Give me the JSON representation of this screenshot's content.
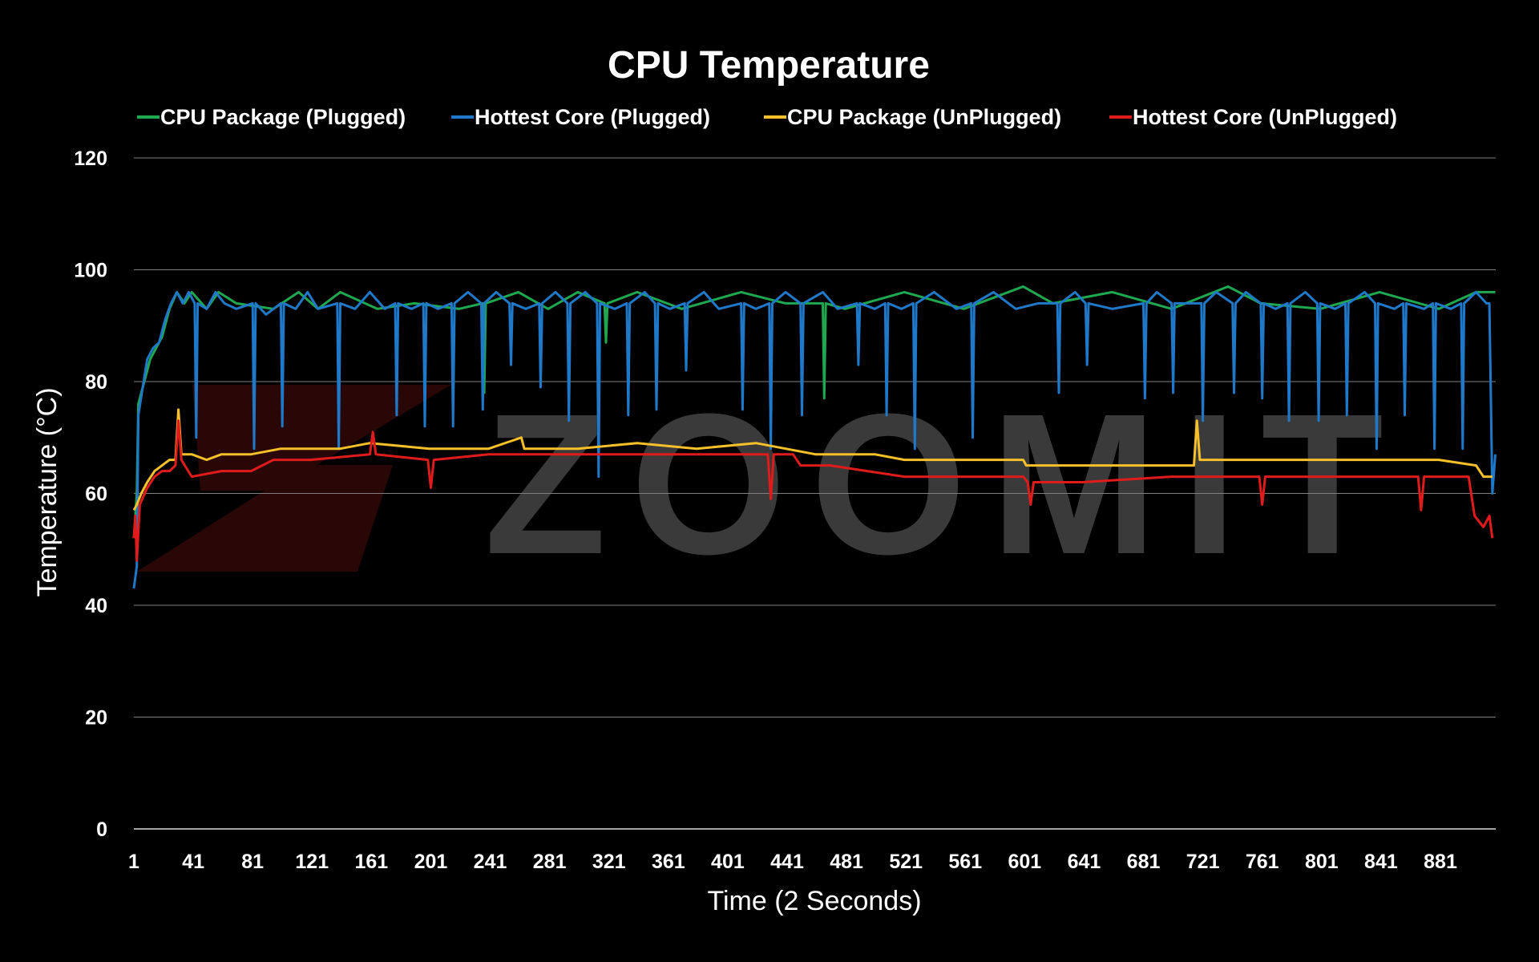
{
  "watermark": "ZOOMIT",
  "chart_data": {
    "type": "line",
    "title": "CPU Temperature",
    "xlabel": "Time (2 Seconds)",
    "ylabel": "Temperature (°C)",
    "ylim": [
      0,
      120
    ],
    "xlim": [
      1,
      918
    ],
    "yticks": [
      0,
      20,
      40,
      60,
      80,
      100,
      120
    ],
    "xticks": [
      1,
      41,
      81,
      121,
      161,
      201,
      241,
      281,
      321,
      361,
      401,
      441,
      481,
      521,
      561,
      601,
      641,
      681,
      721,
      761,
      801,
      841,
      881
    ],
    "grid": true,
    "legend_position": "top",
    "series": [
      {
        "name": "CPU Package (Plugged)",
        "color": "#1fa84f",
        "points": [
          [
            1,
            52
          ],
          [
            3,
            60
          ],
          [
            4,
            76
          ],
          [
            8,
            80
          ],
          [
            12,
            84
          ],
          [
            16,
            86
          ],
          [
            20,
            88
          ],
          [
            25,
            93
          ],
          [
            30,
            96
          ],
          [
            35,
            94
          ],
          [
            40,
            96
          ],
          [
            50,
            93
          ],
          [
            58,
            96
          ],
          [
            70,
            94
          ],
          [
            95,
            93
          ],
          [
            112,
            96
          ],
          [
            125,
            93
          ],
          [
            140,
            96
          ],
          [
            165,
            93
          ],
          [
            190,
            94
          ],
          [
            220,
            93
          ],
          [
            236,
            94
          ],
          [
            237,
            78
          ],
          [
            238,
            94
          ],
          [
            260,
            96
          ],
          [
            280,
            93
          ],
          [
            300,
            96
          ],
          [
            318,
            94
          ],
          [
            319,
            87
          ],
          [
            320,
            94
          ],
          [
            340,
            96
          ],
          [
            370,
            93
          ],
          [
            410,
            96
          ],
          [
            440,
            94
          ],
          [
            465,
            94
          ],
          [
            466,
            77
          ],
          [
            467,
            94
          ],
          [
            480,
            93
          ],
          [
            520,
            96
          ],
          [
            560,
            93
          ],
          [
            600,
            97
          ],
          [
            620,
            94
          ],
          [
            660,
            96
          ],
          [
            700,
            93
          ],
          [
            738,
            97
          ],
          [
            760,
            94
          ],
          [
            800,
            93
          ],
          [
            840,
            96
          ],
          [
            880,
            93
          ],
          [
            905,
            96
          ],
          [
            915,
            96
          ],
          [
            918,
            96
          ]
        ]
      },
      {
        "name": "Hottest Core (Plugged)",
        "color": "#1f78c8",
        "points": [
          [
            1,
            43
          ],
          [
            3,
            47
          ],
          [
            4,
            74
          ],
          [
            7,
            79
          ],
          [
            10,
            84
          ],
          [
            14,
            86
          ],
          [
            18,
            87
          ],
          [
            22,
            91
          ],
          [
            26,
            94
          ],
          [
            30,
            96
          ],
          [
            34,
            94
          ],
          [
            38,
            96
          ],
          [
            42,
            94
          ],
          [
            43,
            70
          ],
          [
            44,
            94
          ],
          [
            50,
            93
          ],
          [
            56,
            96
          ],
          [
            62,
            94
          ],
          [
            70,
            93
          ],
          [
            81,
            94
          ],
          [
            82,
            68
          ],
          [
            83,
            94
          ],
          [
            90,
            92
          ],
          [
            100,
            94
          ],
          [
            101,
            72
          ],
          [
            102,
            94
          ],
          [
            110,
            93
          ],
          [
            118,
            96
          ],
          [
            125,
            93
          ],
          [
            138,
            94
          ],
          [
            139,
            68
          ],
          [
            140,
            94
          ],
          [
            150,
            93
          ],
          [
            160,
            96
          ],
          [
            170,
            93
          ],
          [
            177,
            94
          ],
          [
            178,
            74
          ],
          [
            179,
            94
          ],
          [
            188,
            93
          ],
          [
            196,
            94
          ],
          [
            197,
            72
          ],
          [
            198,
            94
          ],
          [
            206,
            93
          ],
          [
            215,
            94
          ],
          [
            216,
            72
          ],
          [
            217,
            94
          ],
          [
            226,
            96
          ],
          [
            235,
            94
          ],
          [
            236,
            75
          ],
          [
            237,
            94
          ],
          [
            245,
            96
          ],
          [
            254,
            94
          ],
          [
            255,
            83
          ],
          [
            256,
            94
          ],
          [
            265,
            93
          ],
          [
            274,
            94
          ],
          [
            275,
            79
          ],
          [
            276,
            94
          ],
          [
            285,
            96
          ],
          [
            293,
            94
          ],
          [
            294,
            73
          ],
          [
            295,
            94
          ],
          [
            305,
            96
          ],
          [
            313,
            94
          ],
          [
            314,
            63
          ],
          [
            315,
            94
          ],
          [
            325,
            93
          ],
          [
            333,
            94
          ],
          [
            334,
            74
          ],
          [
            335,
            94
          ],
          [
            345,
            96
          ],
          [
            352,
            94
          ],
          [
            353,
            75
          ],
          [
            354,
            94
          ],
          [
            362,
            93
          ],
          [
            372,
            94
          ],
          [
            373,
            82
          ],
          [
            374,
            94
          ],
          [
            385,
            96
          ],
          [
            395,
            93
          ],
          [
            410,
            94
          ],
          [
            411,
            75
          ],
          [
            412,
            94
          ],
          [
            420,
            93
          ],
          [
            429,
            94
          ],
          [
            430,
            68
          ],
          [
            431,
            94
          ],
          [
            440,
            96
          ],
          [
            450,
            94
          ],
          [
            451,
            74
          ],
          [
            452,
            94
          ],
          [
            465,
            96
          ],
          [
            475,
            93
          ],
          [
            488,
            94
          ],
          [
            489,
            83
          ],
          [
            490,
            94
          ],
          [
            500,
            93
          ],
          [
            507,
            94
          ],
          [
            508,
            74
          ],
          [
            509,
            94
          ],
          [
            518,
            93
          ],
          [
            526,
            94
          ],
          [
            527,
            68
          ],
          [
            528,
            94
          ],
          [
            540,
            96
          ],
          [
            555,
            93
          ],
          [
            565,
            94
          ],
          [
            566,
            70
          ],
          [
            567,
            94
          ],
          [
            580,
            96
          ],
          [
            595,
            93
          ],
          [
            610,
            94
          ],
          [
            623,
            94
          ],
          [
            624,
            78
          ],
          [
            625,
            94
          ],
          [
            635,
            96
          ],
          [
            642,
            94
          ],
          [
            643,
            83
          ],
          [
            644,
            94
          ],
          [
            660,
            93
          ],
          [
            681,
            94
          ],
          [
            682,
            77
          ],
          [
            683,
            94
          ],
          [
            690,
            96
          ],
          [
            700,
            94
          ],
          [
            701,
            78
          ],
          [
            702,
            94
          ],
          [
            720,
            94
          ],
          [
            721,
            73
          ],
          [
            722,
            94
          ],
          [
            730,
            96
          ],
          [
            741,
            94
          ],
          [
            742,
            78
          ],
          [
            743,
            94
          ],
          [
            750,
            96
          ],
          [
            760,
            94
          ],
          [
            761,
            77
          ],
          [
            762,
            94
          ],
          [
            770,
            93
          ],
          [
            778,
            94
          ],
          [
            779,
            73
          ],
          [
            780,
            94
          ],
          [
            790,
            96
          ],
          [
            798,
            94
          ],
          [
            799,
            73
          ],
          [
            800,
            94
          ],
          [
            810,
            93
          ],
          [
            817,
            94
          ],
          [
            818,
            74
          ],
          [
            819,
            94
          ],
          [
            830,
            96
          ],
          [
            837,
            94
          ],
          [
            838,
            68
          ],
          [
            839,
            94
          ],
          [
            850,
            93
          ],
          [
            856,
            94
          ],
          [
            857,
            74
          ],
          [
            858,
            94
          ],
          [
            870,
            93
          ],
          [
            876,
            94
          ],
          [
            877,
            68
          ],
          [
            878,
            94
          ],
          [
            888,
            93
          ],
          [
            895,
            94
          ],
          [
            896,
            68
          ],
          [
            897,
            94
          ],
          [
            905,
            96
          ],
          [
            912,
            94
          ],
          [
            914,
            94
          ],
          [
            916,
            60
          ],
          [
            918,
            67
          ]
        ]
      },
      {
        "name": "CPU Package (UnPlugged)",
        "color": "#f5c02a",
        "points": [
          [
            1,
            57
          ],
          [
            3,
            58
          ],
          [
            6,
            60
          ],
          [
            10,
            62
          ],
          [
            15,
            64
          ],
          [
            20,
            65
          ],
          [
            25,
            66
          ],
          [
            29,
            66
          ],
          [
            31,
            75
          ],
          [
            33,
            67
          ],
          [
            40,
            67
          ],
          [
            50,
            66
          ],
          [
            60,
            67
          ],
          [
            80,
            67
          ],
          [
            100,
            68
          ],
          [
            140,
            68
          ],
          [
            160,
            69
          ],
          [
            200,
            68
          ],
          [
            240,
            68
          ],
          [
            262,
            70
          ],
          [
            264,
            68
          ],
          [
            300,
            68
          ],
          [
            340,
            69
          ],
          [
            380,
            68
          ],
          [
            420,
            69
          ],
          [
            440,
            68
          ],
          [
            460,
            67
          ],
          [
            500,
            67
          ],
          [
            520,
            66
          ],
          [
            560,
            66
          ],
          [
            600,
            66
          ],
          [
            602,
            65
          ],
          [
            640,
            65
          ],
          [
            680,
            65
          ],
          [
            715,
            65
          ],
          [
            717,
            73
          ],
          [
            719,
            66
          ],
          [
            760,
            66
          ],
          [
            800,
            66
          ],
          [
            840,
            66
          ],
          [
            880,
            66
          ],
          [
            905,
            65
          ],
          [
            910,
            63
          ],
          [
            916,
            63
          ]
        ]
      },
      {
        "name": "Hottest Core (UnPlugged)",
        "color": "#e01b1b",
        "points": [
          [
            1,
            52
          ],
          [
            2,
            56
          ],
          [
            3,
            48
          ],
          [
            5,
            58
          ],
          [
            10,
            61
          ],
          [
            15,
            63
          ],
          [
            20,
            64
          ],
          [
            25,
            64
          ],
          [
            29,
            65
          ],
          [
            31,
            73
          ],
          [
            33,
            66
          ],
          [
            40,
            63
          ],
          [
            60,
            64
          ],
          [
            80,
            64
          ],
          [
            95,
            66
          ],
          [
            120,
            66
          ],
          [
            160,
            67
          ],
          [
            162,
            71
          ],
          [
            164,
            67
          ],
          [
            199,
            66
          ],
          [
            201,
            61
          ],
          [
            203,
            66
          ],
          [
            240,
            67
          ],
          [
            300,
            67
          ],
          [
            340,
            67
          ],
          [
            400,
            67
          ],
          [
            428,
            67
          ],
          [
            430,
            59
          ],
          [
            432,
            67
          ],
          [
            445,
            67
          ],
          [
            450,
            65
          ],
          [
            470,
            65
          ],
          [
            520,
            63
          ],
          [
            560,
            63
          ],
          [
            600,
            63
          ],
          [
            603,
            62
          ],
          [
            605,
            58
          ],
          [
            607,
            62
          ],
          [
            640,
            62
          ],
          [
            700,
            63
          ],
          [
            759,
            63
          ],
          [
            761,
            58
          ],
          [
            763,
            63
          ],
          [
            820,
            63
          ],
          [
            866,
            63
          ],
          [
            868,
            57
          ],
          [
            870,
            63
          ],
          [
            900,
            63
          ],
          [
            904,
            56
          ],
          [
            910,
            54
          ],
          [
            914,
            56
          ],
          [
            916,
            52
          ]
        ]
      }
    ]
  }
}
